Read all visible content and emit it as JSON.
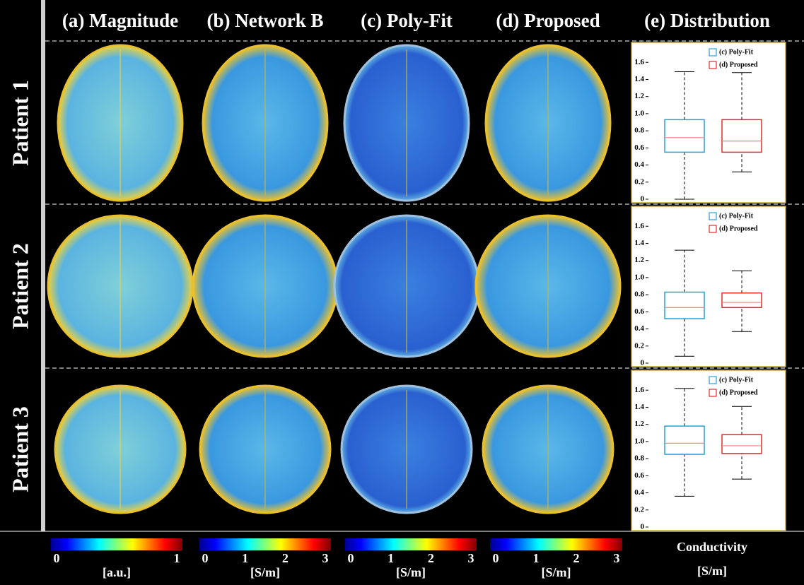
{
  "header": {
    "columns": [
      "(a) Magnitude",
      "(b) Network B",
      "(c) Poly-Fit",
      "(d) Proposed",
      "(e) Distribution"
    ]
  },
  "rows": [
    "Patient 1",
    "Patient 2",
    "Patient 3"
  ],
  "chart_data": [
    {
      "type": "box",
      "ylim": [
        0,
        1.8
      ],
      "yticks": [
        0,
        0.2,
        0.4,
        0.6,
        0.8,
        {
          "value": 1,
          "label": "1.0"
        },
        1.2,
        1.4,
        1.6
      ],
      "series": [
        {
          "name": "(c) Poly-Fit",
          "color": "#2a9fd6",
          "whisker_low": 0,
          "q1": 0.55,
          "median": 0.72,
          "q3": 0.93,
          "whisker_high": 1.49
        },
        {
          "name": "(d) Proposed",
          "color": "#e02a2a",
          "whisker_low": 0.32,
          "q1": 0.55,
          "median": 0.68,
          "q3": 0.93,
          "whisker_high": 1.48
        }
      ]
    },
    {
      "type": "box",
      "ylim": [
        0,
        1.8
      ],
      "yticks": [
        0,
        0.2,
        0.4,
        0.6,
        0.8,
        {
          "value": 1,
          "label": "1.0"
        },
        1.2,
        1.4,
        1.6
      ],
      "series": [
        {
          "name": "(c) Poly-Fit",
          "color": "#2a9fd6",
          "whisker_low": 0.08,
          "q1": 0.52,
          "median": 0.65,
          "q3": 0.83,
          "whisker_high": 1.32
        },
        {
          "name": "(d) Proposed",
          "color": "#e02a2a",
          "whisker_low": 0.37,
          "q1": 0.65,
          "median": 0.71,
          "q3": 0.82,
          "whisker_high": 1.08
        }
      ]
    },
    {
      "type": "box",
      "ylim": [
        0,
        1.8
      ],
      "yticks": [
        0,
        0.2,
        0.4,
        0.6,
        0.8,
        {
          "value": 1,
          "label": "1.0"
        },
        1.2,
        1.4,
        1.6
      ],
      "series": [
        {
          "name": "(c) Poly-Fit",
          "color": "#2a9fd6",
          "whisker_low": 0.36,
          "q1": 0.85,
          "median": 0.98,
          "q3": 1.18,
          "whisker_high": 1.62
        },
        {
          "name": "(d) Proposed",
          "color": "#e02a2a",
          "whisker_low": 0.56,
          "q1": 0.86,
          "median": 0.95,
          "q3": 1.08,
          "whisker_high": 1.41
        }
      ]
    }
  ],
  "colorbars": [
    {
      "lim": [
        0,
        1
      ],
      "ticks": [
        0,
        1
      ],
      "unit": "[a.u.]"
    },
    {
      "lim": [
        0,
        3
      ],
      "ticks": [
        0,
        1,
        2,
        3
      ],
      "unit": "[S/m]"
    },
    {
      "lim": [
        0,
        3
      ],
      "ticks": [
        0,
        1,
        2,
        3
      ],
      "unit": "[S/m]"
    },
    {
      "lim": [
        0,
        3
      ],
      "ticks": [
        0,
        1,
        2,
        3
      ],
      "unit": "[S/m]"
    }
  ],
  "colorbar_title": "Conductivity",
  "colorbar_title_unit": "[S/m]"
}
